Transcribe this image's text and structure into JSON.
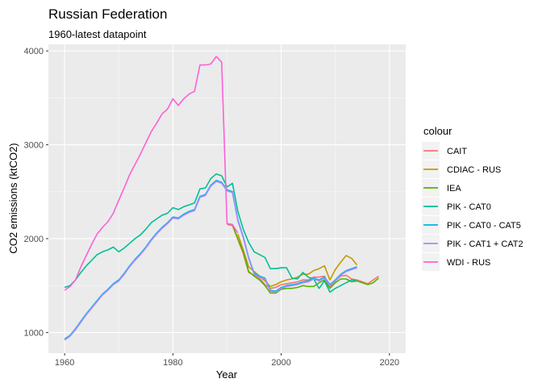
{
  "chart_data": {
    "type": "line",
    "title": "Russian Federation",
    "subtitle": "1960-latest datapoint",
    "xlabel": "Year",
    "ylabel": "CO2 emissions (ktCO2)",
    "xlim": [
      1957,
      2023
    ],
    "ylim": [
      780,
      4070
    ],
    "x_ticks": [
      1960,
      1980,
      2000,
      2020
    ],
    "y_ticks": [
      1000,
      2000,
      3000,
      4000
    ],
    "grid": true,
    "legend_title": "colour",
    "legend_position": "right",
    "series": [
      {
        "name": "CAIT",
        "color": "#F8766D",
        "x": [
          1990,
          1991,
          1992,
          1993,
          1994,
          1995,
          1996,
          1997,
          1998,
          1999,
          2000,
          2001,
          2002,
          2003,
          2004,
          2005,
          2006,
          2007,
          2008,
          2009,
          2010,
          2011,
          2012,
          2013,
          2014,
          2015,
          2016,
          2017,
          2018
        ],
        "y": [
          2150,
          2140,
          1990,
          1840,
          1640,
          1610,
          1580,
          1510,
          1470,
          1480,
          1510,
          1520,
          1530,
          1540,
          1560,
          1560,
          1590,
          1590,
          1600,
          1480,
          1550,
          1600,
          1610,
          1570,
          1560,
          1540,
          1520,
          1560,
          1600
        ]
      },
      {
        "name": "CDIAC - RUS",
        "color": "#C49A00",
        "x": [
          1992,
          1993,
          1994,
          1995,
          1996,
          1997,
          1998,
          1999,
          2000,
          2001,
          2002,
          2003,
          2004,
          2005,
          2006,
          2007,
          2008,
          2009,
          2010,
          2011,
          2012,
          2013,
          2014
        ],
        "y": [
          2050,
          1880,
          1700,
          1650,
          1600,
          1550,
          1490,
          1510,
          1540,
          1560,
          1570,
          1590,
          1620,
          1620,
          1660,
          1680,
          1710,
          1560,
          1670,
          1750,
          1820,
          1790,
          1720
        ]
      },
      {
        "name": "IEA",
        "color": "#53B400",
        "x": [
          1990,
          1991,
          1992,
          1993,
          1994,
          1995,
          1996,
          1997,
          1998,
          1999,
          2000,
          2001,
          2002,
          2003,
          2004,
          2005,
          2006,
          2007,
          2008,
          2009,
          2010,
          2011,
          2012,
          2013,
          2014,
          2015,
          2016,
          2017,
          2018
        ],
        "y": [
          2160,
          2150,
          2000,
          1860,
          1650,
          1600,
          1560,
          1500,
          1420,
          1420,
          1460,
          1470,
          1470,
          1480,
          1500,
          1490,
          1490,
          1530,
          1560,
          1470,
          1530,
          1570,
          1570,
          1540,
          1550,
          1530,
          1510,
          1530,
          1580
        ]
      },
      {
        "name": "PIK - CAT0",
        "color": "#00C094",
        "x": [
          1960,
          1961,
          1962,
          1963,
          1964,
          1965,
          1966,
          1967,
          1968,
          1969,
          1970,
          1971,
          1972,
          1973,
          1974,
          1975,
          1976,
          1977,
          1978,
          1979,
          1980,
          1981,
          1982,
          1983,
          1984,
          1985,
          1986,
          1987,
          1988,
          1989,
          1990,
          1991,
          1992,
          1993,
          1994,
          1995,
          1996,
          1997,
          1998,
          1999,
          2000,
          2001,
          2002,
          2003,
          2004,
          2005,
          2006,
          2007,
          2008,
          2009,
          2010,
          2011,
          2012,
          2013,
          2014
        ],
        "y": [
          1480,
          1500,
          1560,
          1640,
          1710,
          1770,
          1830,
          1860,
          1880,
          1910,
          1860,
          1900,
          1950,
          2000,
          2040,
          2100,
          2170,
          2210,
          2250,
          2270,
          2330,
          2310,
          2340,
          2360,
          2380,
          2530,
          2540,
          2640,
          2690,
          2670,
          2550,
          2590,
          2290,
          2100,
          1960,
          1860,
          1830,
          1800,
          1680,
          1680,
          1690,
          1690,
          1580,
          1570,
          1640,
          1590,
          1570,
          1470,
          1550,
          1430,
          1470,
          1500,
          1530,
          1560,
          1550
        ]
      },
      {
        "name": "PIK - CAT0 - CAT5",
        "color": "#00B6EB",
        "x": [
          1960,
          1961,
          1962,
          1963,
          1964,
          1965,
          1966,
          1967,
          1968,
          1969,
          1970,
          1971,
          1972,
          1973,
          1974,
          1975,
          1976,
          1977,
          1978,
          1979,
          1980,
          1981,
          1982,
          1983,
          1984,
          1985,
          1986,
          1987,
          1988,
          1989,
          1990,
          1991,
          1992,
          1993,
          1994,
          1995,
          1996,
          1997,
          1998,
          1999,
          2000,
          2001,
          2002,
          2003,
          2004,
          2005,
          2006,
          2007,
          2008,
          2009,
          2010,
          2011,
          2012,
          2013,
          2014
        ],
        "y": [
          930,
          970,
          1040,
          1120,
          1200,
          1270,
          1340,
          1410,
          1460,
          1520,
          1560,
          1630,
          1710,
          1780,
          1840,
          1910,
          1990,
          2060,
          2120,
          2170,
          2230,
          2220,
          2260,
          2290,
          2310,
          2450,
          2470,
          2570,
          2620,
          2600,
          2520,
          2500,
          2200,
          2020,
          1800,
          1630,
          1600,
          1580,
          1450,
          1440,
          1480,
          1500,
          1510,
          1520,
          1540,
          1550,
          1580,
          1560,
          1590,
          1510,
          1560,
          1620,
          1660,
          1680,
          1700
        ]
      },
      {
        "name": "PIK - CAT1 + CAT2",
        "color": "#A58AFF",
        "x": [
          1960,
          1961,
          1962,
          1963,
          1964,
          1965,
          1966,
          1967,
          1968,
          1969,
          1970,
          1971,
          1972,
          1973,
          1974,
          1975,
          1976,
          1977,
          1978,
          1979,
          1980,
          1981,
          1982,
          1983,
          1984,
          1985,
          1986,
          1987,
          1988,
          1989,
          1990,
          1991,
          1992,
          1993,
          1994,
          1995,
          1996,
          1997,
          1998,
          1999,
          2000,
          2001,
          2002,
          2003,
          2004,
          2005,
          2006,
          2007,
          2008,
          2009,
          2010,
          2011,
          2012,
          2013,
          2014
        ],
        "y": [
          920,
          960,
          1030,
          1110,
          1190,
          1260,
          1330,
          1400,
          1450,
          1510,
          1550,
          1620,
          1700,
          1770,
          1830,
          1900,
          1980,
          2050,
          2110,
          2160,
          2220,
          2210,
          2250,
          2280,
          2300,
          2440,
          2460,
          2560,
          2610,
          2590,
          2510,
          2490,
          2190,
          2010,
          1790,
          1620,
          1590,
          1570,
          1440,
          1430,
          1470,
          1490,
          1500,
          1510,
          1530,
          1540,
          1570,
          1550,
          1580,
          1500,
          1550,
          1610,
          1650,
          1670,
          1690
        ]
      },
      {
        "name": "WDI - RUS",
        "color": "#FB61D7",
        "x": [
          1960,
          1961,
          1962,
          1963,
          1964,
          1965,
          1966,
          1967,
          1968,
          1969,
          1970,
          1971,
          1972,
          1973,
          1974,
          1975,
          1976,
          1977,
          1978,
          1979,
          1980,
          1981,
          1982,
          1983,
          1984,
          1985,
          1986,
          1987,
          1988,
          1989,
          1990,
          1991,
          1992
        ],
        "y": [
          1450,
          1490,
          1560,
          1700,
          1820,
          1940,
          2050,
          2120,
          2180,
          2270,
          2410,
          2540,
          2680,
          2790,
          2900,
          3020,
          3140,
          3230,
          3330,
          3380,
          3490,
          3420,
          3490,
          3540,
          3570,
          3850,
          3850,
          3860,
          3940,
          3880,
          2160,
          2150,
          2060
        ]
      }
    ]
  }
}
